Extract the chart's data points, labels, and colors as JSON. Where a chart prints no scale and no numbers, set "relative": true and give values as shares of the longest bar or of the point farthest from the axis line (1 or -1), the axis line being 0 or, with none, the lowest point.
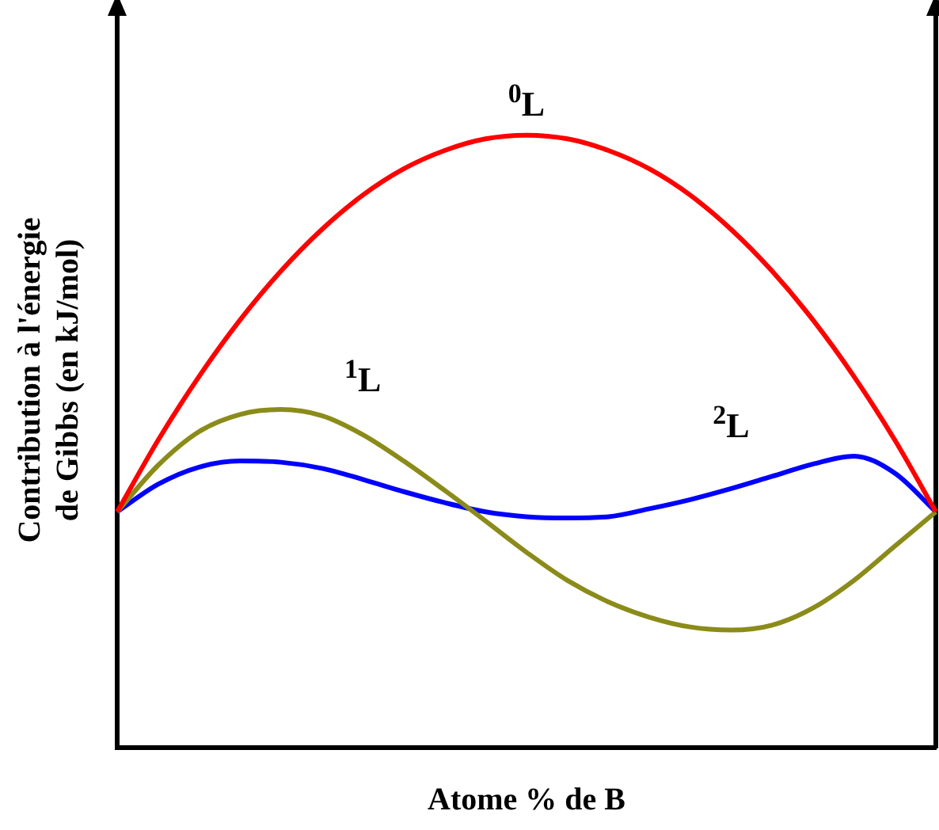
{
  "chart_data": {
    "type": "line",
    "relative": true,
    "xlabel": "Atome % de B",
    "ylabel": "Contribution à l'énergie de Gibbs (en kJ/mol)",
    "categories": [
      null,
      null,
      null,
      null,
      null,
      null,
      null,
      null,
      null,
      null,
      null,
      null,
      null,
      null,
      null,
      null,
      null,
      null,
      null,
      null,
      null
    ],
    "series": [
      {
        "color": "#ff0000",
        "values": [
          0.385,
          0.502,
          0.606,
          0.698,
          0.778,
          0.846,
          0.902,
          0.945,
          0.975,
          0.994,
          1,
          0.994,
          0.975,
          0.945,
          0.902,
          0.846,
          0.778,
          0.698,
          0.606,
          0.502,
          0.385
        ]
      },
      {
        "color": "#8b8b1a",
        "values": [
          0.385,
          0.461,
          0.516,
          0.544,
          0.552,
          0.542,
          0.511,
          0.468,
          0.42,
          0.37,
          0.319,
          0.273,
          0.238,
          0.213,
          0.197,
          0.192,
          0.2,
          0.228,
          0.273,
          0.329,
          0.385
        ]
      },
      {
        "color": "#0000ff",
        "values": [
          0.385,
          0.43,
          0.458,
          0.468,
          0.466,
          0.456,
          0.438,
          0.418,
          0.4,
          0.385,
          0.377,
          0.375,
          0.377,
          0.39,
          0.405,
          0.423,
          0.443,
          0.463,
          0.476,
          0.448,
          0.385
        ]
      }
    ],
    "annotations": [
      "$^{0}$L",
      "$^{1}$L",
      "$^{2}$L"
    ],
    "grid": false,
    "legend": false,
    "marker": "none",
    "line_style": "solid",
    "tick_labels": false
  }
}
